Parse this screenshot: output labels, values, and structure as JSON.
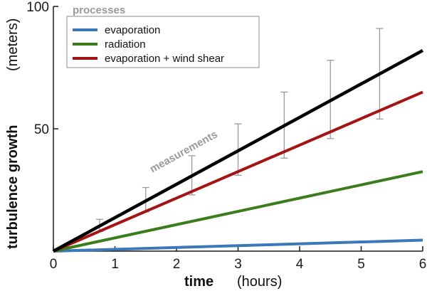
{
  "chart_data": {
    "type": "line",
    "xlabel": "time",
    "xlabel_unit": "(hours)",
    "ylabel": "turbulence growth",
    "ylabel_unit": "(meters)",
    "xlim": [
      0,
      6
    ],
    "ylim": [
      0,
      100
    ],
    "xticks": [
      0,
      1,
      2,
      3,
      4,
      5,
      6
    ],
    "yticks": [
      0,
      50,
      100
    ],
    "grid": false,
    "legend": {
      "title": "processes",
      "placement": "top-left"
    },
    "series": [
      {
        "name": "evaporation",
        "color": "#3b78b8",
        "x": [
          0,
          6
        ],
        "y": [
          0,
          4.5
        ]
      },
      {
        "name": "radiation",
        "color": "#3b7d1c",
        "x": [
          0,
          6
        ],
        "y": [
          0,
          32.5
        ]
      },
      {
        "name": "evaporation + wind shear",
        "color": "#a51414",
        "x": [
          0,
          6
        ],
        "y": [
          0,
          65
        ]
      },
      {
        "name": "",
        "color": "#000000",
        "x": [
          0,
          6
        ],
        "y": [
          0,
          82
        ]
      }
    ],
    "measurements": {
      "label": "measurements",
      "color": "#999999",
      "x": [
        0.75,
        1.5,
        2.25,
        3.0,
        3.75,
        4.5,
        5.3
      ],
      "low": [
        8,
        16,
        23,
        31,
        38,
        46,
        54
      ],
      "high": [
        13,
        26,
        39,
        52,
        65,
        78,
        91
      ]
    }
  }
}
